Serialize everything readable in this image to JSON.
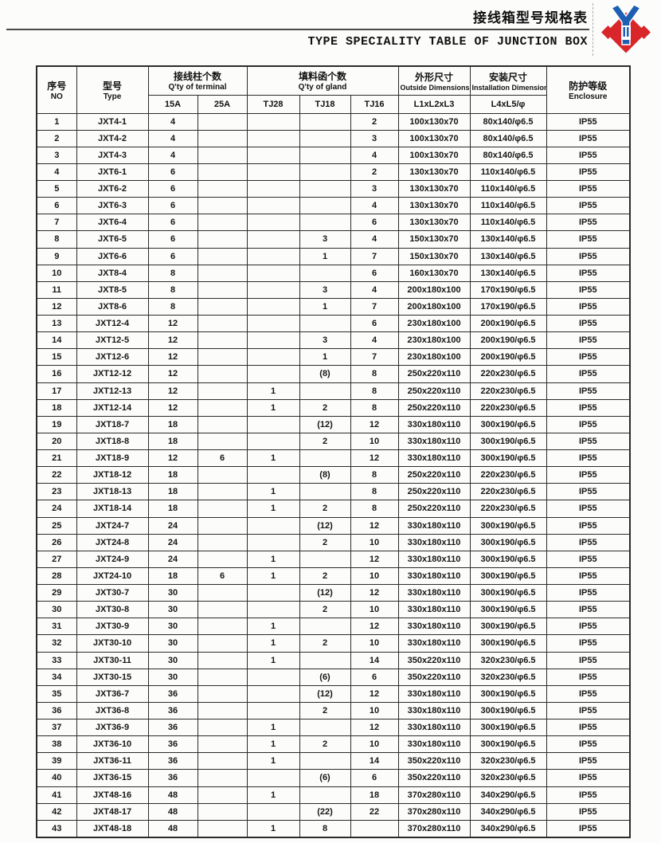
{
  "page": {
    "title_cn": "接线箱型号规格表",
    "title_en": "TYPE SPECIALITY TABLE OF JUNCTION BOX"
  },
  "logo": {
    "name": "junction-box brand logo",
    "red": "#d8262a",
    "blue": "#1d5fb2"
  },
  "table": {
    "headers": {
      "no_cn": "序号",
      "no_en": "NO",
      "type_cn": "型号",
      "type_en": "Type",
      "terminal_cn": "接线柱个数",
      "terminal_en": "Q'ty of terminal",
      "terminal_sub_1": "15A",
      "terminal_sub_2": "25A",
      "gland_cn": "填料函个数",
      "gland_en": "Q'ty of gland",
      "gland_sub_1": "TJ28",
      "gland_sub_2": "TJ18",
      "gland_sub_3": "TJ16",
      "outside_cn": "外形尺寸",
      "outside_en": "Outside Dimensions",
      "outside_sub": "L1xL2xL3",
      "install_cn": "安装尺寸",
      "install_en": "Installation Dimensions",
      "install_sub": "L4xL5/φ",
      "enclosure_cn": "防护等级",
      "enclosure_en": "Enclosure"
    },
    "column_keys": [
      "no",
      "type",
      "15a",
      "25a",
      "tj28",
      "tj18",
      "tj16",
      "outside-dimensions",
      "installation-dimensions",
      "enclosure"
    ],
    "rows": [
      [
        "1",
        "JXT4-1",
        "4",
        "",
        "",
        "",
        "2",
        "100x130x70",
        "80x140/φ6.5",
        "IP55"
      ],
      [
        "2",
        "JXT4-2",
        "4",
        "",
        "",
        "",
        "3",
        "100x130x70",
        "80x140/φ6.5",
        "IP55"
      ],
      [
        "3",
        "JXT4-3",
        "4",
        "",
        "",
        "",
        "4",
        "100x130x70",
        "80x140/φ6.5",
        "IP55"
      ],
      [
        "4",
        "JXT6-1",
        "6",
        "",
        "",
        "",
        "2",
        "130x130x70",
        "110x140/φ6.5",
        "IP55"
      ],
      [
        "5",
        "JXT6-2",
        "6",
        "",
        "",
        "",
        "3",
        "130x130x70",
        "110x140/φ6.5",
        "IP55"
      ],
      [
        "6",
        "JXT6-3",
        "6",
        "",
        "",
        "",
        "4",
        "130x130x70",
        "110x140/φ6.5",
        "IP55"
      ],
      [
        "7",
        "JXT6-4",
        "6",
        "",
        "",
        "",
        "6",
        "130x130x70",
        "110x140/φ6.5",
        "IP55"
      ],
      [
        "8",
        "JXT6-5",
        "6",
        "",
        "",
        "3",
        "4",
        "150x130x70",
        "130x140/φ6.5",
        "IP55"
      ],
      [
        "9",
        "JXT6-6",
        "6",
        "",
        "",
        "1",
        "7",
        "150x130x70",
        "130x140/φ6.5",
        "IP55"
      ],
      [
        "10",
        "JXT8-4",
        "8",
        "",
        "",
        "",
        "6",
        "160x130x70",
        "130x140/φ6.5",
        "IP55"
      ],
      [
        "11",
        "JXT8-5",
        "8",
        "",
        "",
        "3",
        "4",
        "200x180x100",
        "170x190/φ6.5",
        "IP55"
      ],
      [
        "12",
        "JXT8-6",
        "8",
        "",
        "",
        "1",
        "7",
        "200x180x100",
        "170x190/φ6.5",
        "IP55"
      ],
      [
        "13",
        "JXT12-4",
        "12",
        "",
        "",
        "",
        "6",
        "230x180x100",
        "200x190/φ6.5",
        "IP55"
      ],
      [
        "14",
        "JXT12-5",
        "12",
        "",
        "",
        "3",
        "4",
        "230x180x100",
        "200x190/φ6.5",
        "IP55"
      ],
      [
        "15",
        "JXT12-6",
        "12",
        "",
        "",
        "1",
        "7",
        "230x180x100",
        "200x190/φ6.5",
        "IP55"
      ],
      [
        "16",
        "JXT12-12",
        "12",
        "",
        "",
        "(8)",
        "8",
        "250x220x110",
        "220x230/φ6.5",
        "IP55"
      ],
      [
        "17",
        "JXT12-13",
        "12",
        "",
        "1",
        "",
        "8",
        "250x220x110",
        "220x230/φ6.5",
        "IP55"
      ],
      [
        "18",
        "JXT12-14",
        "12",
        "",
        "1",
        "2",
        "8",
        "250x220x110",
        "220x230/φ6.5",
        "IP55"
      ],
      [
        "19",
        "JXT18-7",
        "18",
        "",
        "",
        "(12)",
        "12",
        "330x180x110",
        "300x190/φ6.5",
        "IP55"
      ],
      [
        "20",
        "JXT18-8",
        "18",
        "",
        "",
        "2",
        "10",
        "330x180x110",
        "300x190/φ6.5",
        "IP55"
      ],
      [
        "21",
        "JXT18-9",
        "12",
        "6",
        "1",
        "",
        "12",
        "330x180x110",
        "300x190/φ6.5",
        "IP55"
      ],
      [
        "22",
        "JXT18-12",
        "18",
        "",
        "",
        "(8)",
        "8",
        "250x220x110",
        "220x230/φ6.5",
        "IP55"
      ],
      [
        "23",
        "JXT18-13",
        "18",
        "",
        "1",
        "",
        "8",
        "250x220x110",
        "220x230/φ6.5",
        "IP55"
      ],
      [
        "24",
        "JXT18-14",
        "18",
        "",
        "1",
        "2",
        "8",
        "250x220x110",
        "220x230/φ6.5",
        "IP55"
      ],
      [
        "25",
        "JXT24-7",
        "24",
        "",
        "",
        "(12)",
        "12",
        "330x180x110",
        "300x190/φ6.5",
        "IP55"
      ],
      [
        "26",
        "JXT24-8",
        "24",
        "",
        "",
        "2",
        "10",
        "330x180x110",
        "300x190/φ6.5",
        "IP55"
      ],
      [
        "27",
        "JXT24-9",
        "24",
        "",
        "1",
        "",
        "12",
        "330x180x110",
        "300x190/φ6.5",
        "IP55"
      ],
      [
        "28",
        "JXT24-10",
        "18",
        "6",
        "1",
        "2",
        "10",
        "330x180x110",
        "300x190/φ6.5",
        "IP55"
      ],
      [
        "29",
        "JXT30-7",
        "30",
        "",
        "",
        "(12)",
        "12",
        "330x180x110",
        "300x190/φ6.5",
        "IP55"
      ],
      [
        "30",
        "JXT30-8",
        "30",
        "",
        "",
        "2",
        "10",
        "330x180x110",
        "300x190/φ6.5",
        "IP55"
      ],
      [
        "31",
        "JXT30-9",
        "30",
        "",
        "1",
        "",
        "12",
        "330x180x110",
        "300x190/φ6.5",
        "IP55"
      ],
      [
        "32",
        "JXT30-10",
        "30",
        "",
        "1",
        "2",
        "10",
        "330x180x110",
        "300x190/φ6.5",
        "IP55"
      ],
      [
        "33",
        "JXT30-11",
        "30",
        "",
        "1",
        "",
        "14",
        "350x220x110",
        "320x230/φ6.5",
        "IP55"
      ],
      [
        "34",
        "JXT30-15",
        "30",
        "",
        "",
        "(6)",
        "6",
        "350x220x110",
        "320x230/φ6.5",
        "IP55"
      ],
      [
        "35",
        "JXT36-7",
        "36",
        "",
        "",
        "(12)",
        "12",
        "330x180x110",
        "300x190/φ6.5",
        "IP55"
      ],
      [
        "36",
        "JXT36-8",
        "36",
        "",
        "",
        "2",
        "10",
        "330x180x110",
        "300x190/φ6.5",
        "IP55"
      ],
      [
        "37",
        "JXT36-9",
        "36",
        "",
        "1",
        "",
        "12",
        "330x180x110",
        "300x190/φ6.5",
        "IP55"
      ],
      [
        "38",
        "JXT36-10",
        "36",
        "",
        "1",
        "2",
        "10",
        "330x180x110",
        "300x190/φ6.5",
        "IP55"
      ],
      [
        "39",
        "JXT36-11",
        "36",
        "",
        "1",
        "",
        "14",
        "350x220x110",
        "320x230/φ6.5",
        "IP55"
      ],
      [
        "40",
        "JXT36-15",
        "36",
        "",
        "",
        "(6)",
        "6",
        "350x220x110",
        "320x230/φ6.5",
        "IP55"
      ],
      [
        "41",
        "JXT48-16",
        "48",
        "",
        "1",
        "",
        "18",
        "370x280x110",
        "340x290/φ6.5",
        "IP55"
      ],
      [
        "42",
        "JXT48-17",
        "48",
        "",
        "",
        "(22)",
        "22",
        "370x280x110",
        "340x290/φ6.5",
        "IP55"
      ],
      [
        "43",
        "JXT48-18",
        "48",
        "",
        "1",
        "8",
        "",
        "370x280x110",
        "340x290/φ6.5",
        "IP55"
      ]
    ]
  }
}
